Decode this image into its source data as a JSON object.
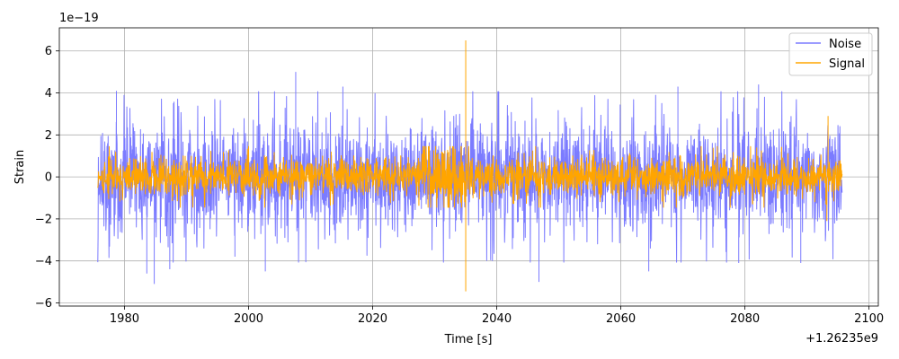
{
  "chart_data": {
    "type": "line",
    "xlabel": "Time [s]",
    "ylabel": "Strain",
    "x_offset_label": "+1.26235e9",
    "y_scale_label": "1e−19",
    "xlim": [
      1969.5,
      2101.5
    ],
    "ylim": [
      -6.15,
      7.1
    ],
    "x_ticks": [
      1980,
      2000,
      2020,
      2040,
      2060,
      2080,
      2100
    ],
    "x_tick_labels": [
      "1980",
      "2000",
      "2020",
      "2040",
      "2060",
      "2080",
      "2100"
    ],
    "y_ticks": [
      -6,
      -4,
      -2,
      0,
      2,
      4,
      6
    ],
    "y_tick_labels": [
      "−6",
      "−4",
      "−2",
      "0",
      "2",
      "4",
      "6"
    ],
    "grid": true,
    "legend_position": "top-right",
    "series": [
      {
        "name": "Noise",
        "color": "#7b7bff",
        "x_range": [
          1975.7,
          2095.7
        ],
        "typical_amplitude": 2.8,
        "peaks": [
          {
            "x": 1978.7,
            "y": 4.1
          },
          {
            "x": 1983.6,
            "y": -4.6
          },
          {
            "x": 1984.8,
            "y": -5.1
          },
          {
            "x": 1987.3,
            "y": -4.4
          },
          {
            "x": 1997.8,
            "y": -3.8
          },
          {
            "x": 2002.7,
            "y": -4.5
          },
          {
            "x": 2007.6,
            "y": 5.0
          },
          {
            "x": 2015.2,
            "y": 4.3
          },
          {
            "x": 2039.3,
            "y": -4.0
          },
          {
            "x": 2046.8,
            "y": -5.0
          },
          {
            "x": 2064.5,
            "y": -4.5
          },
          {
            "x": 2069.2,
            "y": 4.3
          },
          {
            "x": 2079.0,
            "y": -4.1
          },
          {
            "x": 2082.2,
            "y": 4.4
          },
          {
            "x": 2089.0,
            "y": -4.1
          }
        ]
      },
      {
        "name": "Signal",
        "color": "#ffa500",
        "x_range": [
          1975.7,
          2095.7
        ],
        "typical_amplitude": 1.0,
        "chirp_peak_time": 2035.0,
        "peaks": [
          {
            "x": 2035.0,
            "y": 6.5
          },
          {
            "x": 2035.0,
            "y": -5.45
          },
          {
            "x": 2093.4,
            "y": 2.9
          },
          {
            "x": 2093.2,
            "y": -2.1
          }
        ]
      }
    ]
  }
}
